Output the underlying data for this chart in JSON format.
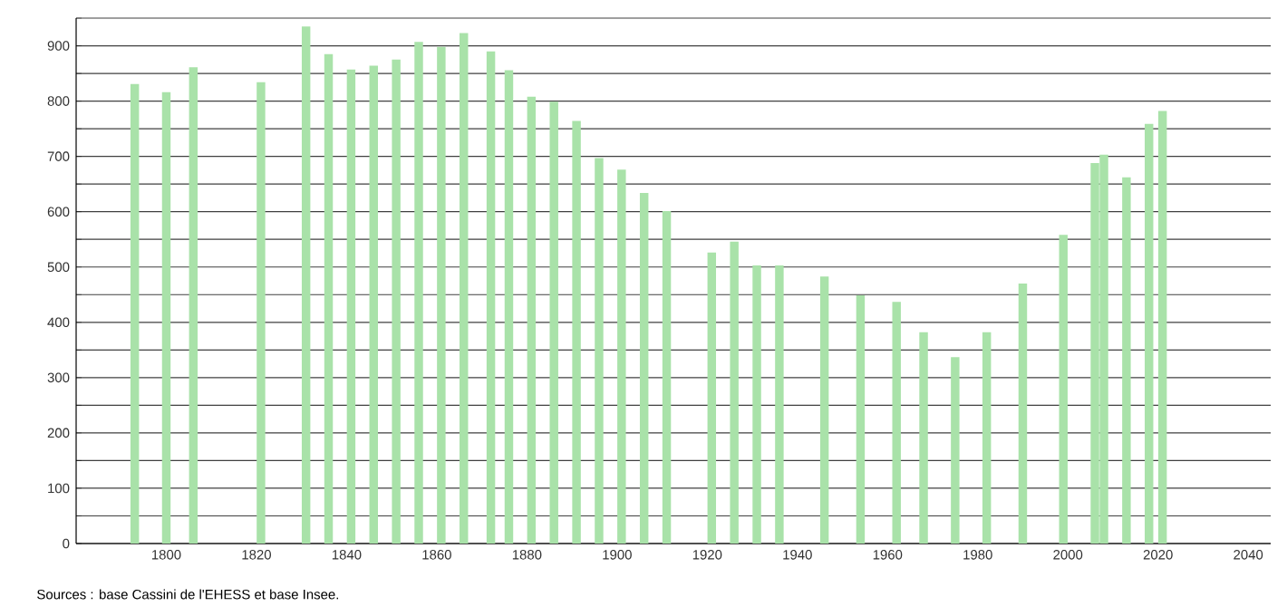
{
  "chart_data": {
    "type": "bar",
    "x": [
      1793,
      1800,
      1806,
      1821,
      1831,
      1836,
      1841,
      1846,
      1851,
      1856,
      1861,
      1866,
      1872,
      1876,
      1881,
      1886,
      1891,
      1896,
      1901,
      1906,
      1911,
      1921,
      1926,
      1931,
      1936,
      1946,
      1954,
      1962,
      1968,
      1975,
      1982,
      1990,
      1999,
      2006,
      2008,
      2013,
      2018,
      2021
    ],
    "values": [
      831,
      816,
      861,
      834,
      935,
      885,
      857,
      864,
      875,
      907,
      898,
      923,
      890,
      856,
      808,
      799,
      764,
      697,
      676,
      634,
      601,
      526,
      546,
      503,
      503,
      483,
      449,
      437,
      382,
      337,
      382,
      470,
      558,
      688,
      703,
      662,
      759,
      782
    ],
    "color": "#a9e2a9",
    "xlim": [
      1780,
      2045
    ],
    "ylim": [
      0,
      950
    ],
    "xticks": [
      1800,
      1820,
      1840,
      1860,
      1880,
      1900,
      1920,
      1940,
      1960,
      1980,
      2000,
      2020,
      2040
    ],
    "yticks": [
      0,
      {
        "value": 50,
        "label": null
      },
      100,
      {
        "value": 150,
        "label": null
      },
      200,
      {
        "value": 250,
        "label": null
      },
      300,
      {
        "value": 350,
        "label": null
      },
      400,
      {
        "value": 450,
        "label": null
      },
      500,
      {
        "value": 550,
        "label": null
      },
      600,
      {
        "value": 650,
        "label": null
      },
      700,
      {
        "value": 750,
        "label": null
      },
      800,
      {
        "value": 850,
        "label": null
      },
      900,
      {
        "value": 950,
        "label": null
      }
    ],
    "grid": "y",
    "annotations": [
      "Sources : base Cassini de l'EHESS et base Insee."
    ]
  }
}
